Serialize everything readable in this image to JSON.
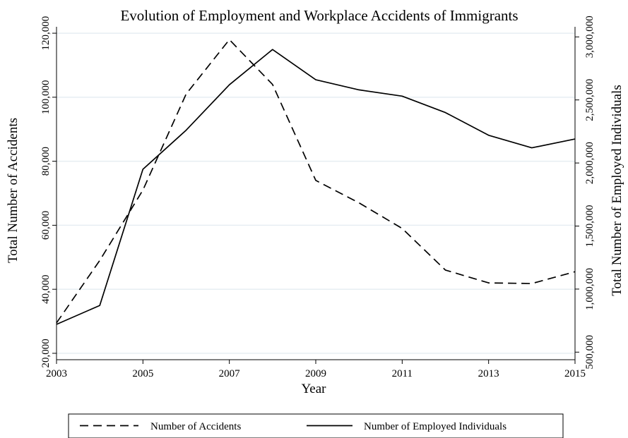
{
  "chart_data": {
    "type": "line",
    "title": "Evolution of Employment and Workplace Accidents of Immigrants",
    "xlabel": "Year",
    "ylabel_left": "Total Number of Accidents",
    "ylabel_right": "Total Number of Employed Individuals",
    "x": [
      2003,
      2004,
      2005,
      2006,
      2007,
      2008,
      2009,
      2010,
      2011,
      2012,
      2013,
      2014,
      2015
    ],
    "x_ticks": [
      2003,
      2005,
      2007,
      2009,
      2011,
      2013,
      2015
    ],
    "x_tick_labels": [
      "2003",
      "2005",
      "2007",
      "2009",
      "2011",
      "2013",
      "2015"
    ],
    "ylim_left": [
      18000,
      122000
    ],
    "yticks_left": [
      20000,
      40000,
      60000,
      80000,
      100000,
      120000
    ],
    "ytick_labels_left": [
      "20,000",
      "40,000",
      "60,000",
      "80,000",
      "100,000",
      "120,000"
    ],
    "ylim_right": [
      440000,
      3080000
    ],
    "yticks_right": [
      500000,
      1000000,
      1500000,
      2000000,
      2500000,
      3000000
    ],
    "ytick_labels_right": [
      "500,000",
      "1,000,000",
      "1,500,000",
      "2,000,000",
      "2,500,000",
      "3,000,000"
    ],
    "grid": true,
    "legend_position": "bottom",
    "series": [
      {
        "name": "Number of Accidents",
        "axis": "left",
        "style": "dashed",
        "color": "#000000",
        "values": [
          29500,
          49000,
          71000,
          101000,
          118000,
          104000,
          74000,
          67000,
          59000,
          46000,
          42000,
          41800,
          45500
        ]
      },
      {
        "name": "Number of Employed Individuals",
        "axis": "right",
        "style": "solid",
        "color": "#000000",
        "values": [
          720000,
          870000,
          1950000,
          2260000,
          2620000,
          2900000,
          2660000,
          2580000,
          2530000,
          2400000,
          2220000,
          2120000,
          2190000
        ]
      }
    ]
  }
}
